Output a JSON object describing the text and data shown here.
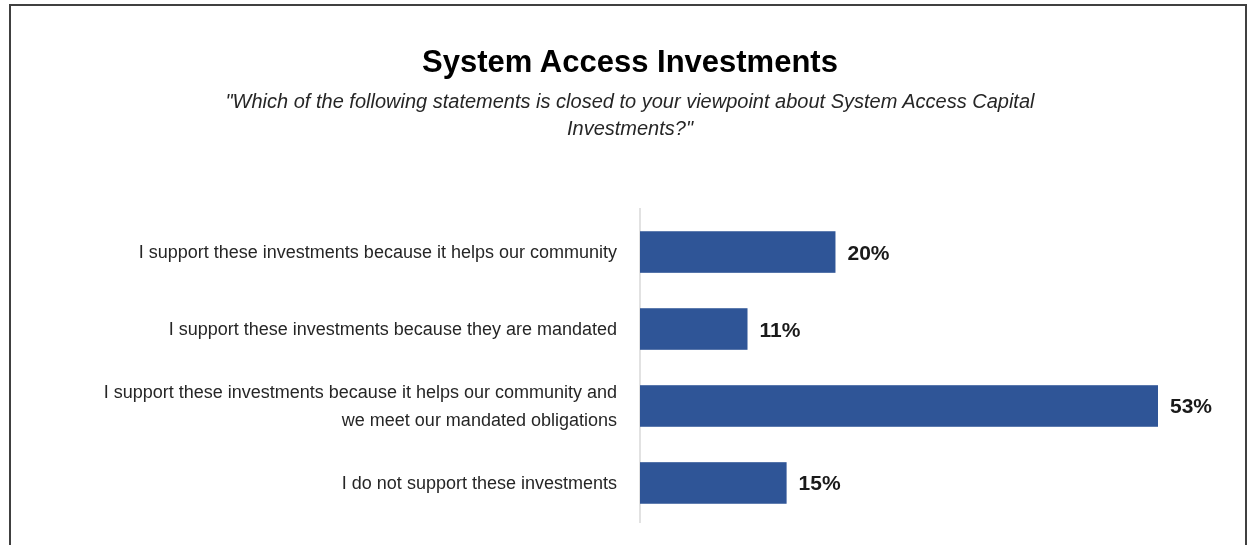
{
  "chart_data": {
    "type": "bar",
    "orientation": "horizontal",
    "title": "System Access Investments",
    "subtitle": "\"Which of the following statements is closed to your viewpoint about System Access Capital Investments?\"",
    "categories": [
      "I support these investments because it helps our community",
      "I support these investments because they are mandated",
      "I support these investments because it helps our community and we meet our mandated obligations",
      "I do not support these investments"
    ],
    "values": [
      20,
      11,
      53,
      15
    ],
    "value_labels": [
      "20%",
      "11%",
      "53%",
      "15%"
    ],
    "color": "#2f5597"
  }
}
